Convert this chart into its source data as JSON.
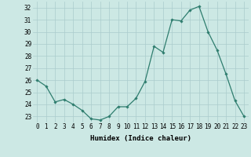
{
  "x": [
    0,
    1,
    2,
    3,
    4,
    5,
    6,
    7,
    8,
    9,
    10,
    11,
    12,
    13,
    14,
    15,
    16,
    17,
    18,
    19,
    20,
    21,
    22,
    23
  ],
  "y": [
    26,
    25.5,
    24.2,
    24.4,
    24.0,
    23.5,
    22.8,
    22.7,
    23.0,
    23.8,
    23.8,
    24.5,
    25.9,
    28.8,
    28.3,
    31.0,
    30.9,
    31.8,
    32.1,
    30.0,
    28.5,
    26.5,
    24.3,
    23.0
  ],
  "line_color": "#2e7d6e",
  "marker": "D",
  "marker_size": 1.8,
  "linewidth": 0.9,
  "bg_color": "#cce8e4",
  "grid_color": "#aacccc",
  "xlabel": "Humidex (Indice chaleur)",
  "xlim": [
    -0.5,
    23.5
  ],
  "ylim": [
    22.5,
    32.5
  ],
  "yticks": [
    23,
    24,
    25,
    26,
    27,
    28,
    29,
    30,
    31,
    32
  ],
  "xticks": [
    0,
    1,
    2,
    3,
    4,
    5,
    6,
    7,
    8,
    9,
    10,
    11,
    12,
    13,
    14,
    15,
    16,
    17,
    18,
    19,
    20,
    21,
    22,
    23
  ],
  "xlabel_fontsize": 6.5,
  "tick_fontsize": 5.5
}
